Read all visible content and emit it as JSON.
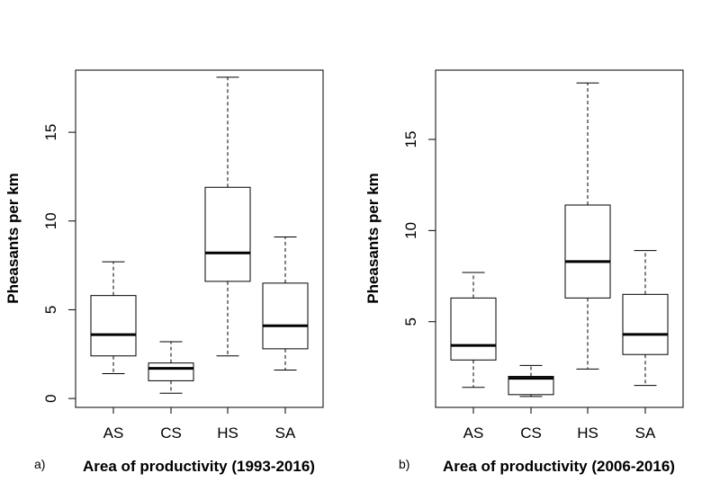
{
  "chart_data": [
    {
      "type": "boxplot",
      "panel_label": "a)",
      "xlabel": "Area of productivity (1993-2016)",
      "ylabel": "Pheasants per km",
      "ylim": [
        -0.5,
        18.5
      ],
      "yticks": [
        0,
        5,
        10,
        15
      ],
      "ytick_labels": [
        "0",
        "5",
        "10",
        "15"
      ],
      "categories": [
        "AS",
        "CS",
        "HS",
        "SA"
      ],
      "boxes": [
        {
          "min": 1.4,
          "q1": 2.4,
          "median": 3.6,
          "q3": 5.8,
          "max": 7.7
        },
        {
          "min": 0.3,
          "q1": 1.0,
          "median": 1.7,
          "q3": 2.0,
          "max": 3.2
        },
        {
          "min": 2.4,
          "q1": 6.6,
          "median": 8.2,
          "q3": 11.9,
          "max": 18.1
        },
        {
          "min": 1.6,
          "q1": 2.8,
          "median": 4.1,
          "q3": 6.5,
          "max": 9.1
        }
      ]
    },
    {
      "type": "boxplot",
      "panel_label": "b)",
      "xlabel": "Area of productivity (2006-2016)",
      "ylabel": "Pheasants per km",
      "ylim": [
        0.3,
        18.8
      ],
      "yticks": [
        5,
        10,
        15
      ],
      "ytick_labels": [
        "5",
        "10",
        "15"
      ],
      "categories": [
        "AS",
        "CS",
        "HS",
        "SA"
      ],
      "boxes": [
        {
          "min": 1.4,
          "q1": 2.9,
          "median": 3.7,
          "q3": 6.3,
          "max": 7.7
        },
        {
          "min": 0.9,
          "q1": 1.0,
          "median": 1.9,
          "q3": 2.0,
          "max": 2.6
        },
        {
          "min": 2.4,
          "q1": 6.3,
          "median": 8.3,
          "q3": 11.4,
          "max": 18.1
        },
        {
          "min": 1.5,
          "q1": 3.2,
          "median": 4.3,
          "q3": 6.5,
          "max": 8.9
        }
      ]
    }
  ]
}
